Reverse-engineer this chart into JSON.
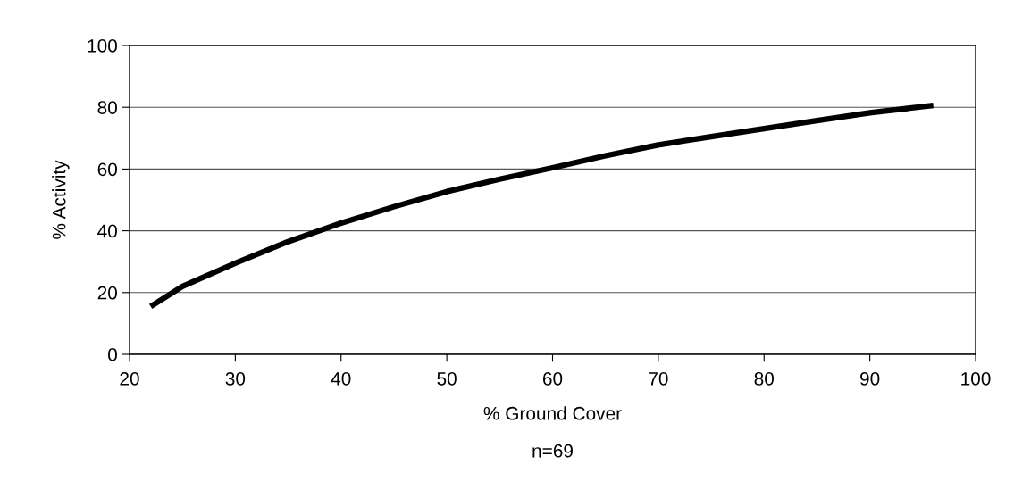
{
  "chart_data": {
    "type": "line",
    "xlabel": "% Ground Cover",
    "ylabel": "% Activity",
    "annotations": [
      "n=69"
    ],
    "x": [
      22,
      25,
      30,
      35,
      40,
      45,
      50,
      55,
      60,
      65,
      70,
      75,
      80,
      85,
      90,
      96
    ],
    "series": [
      {
        "color": "#000000",
        "values": [
          15.5,
          22,
          29.5,
          36.5,
          42.5,
          47.8,
          52.7,
          56.7,
          60.4,
          64.3,
          67.8,
          70.5,
          73.1,
          75.7,
          78.2,
          80.6
        ]
      }
    ],
    "xlim": [
      20,
      100
    ],
    "ylim": [
      0,
      100
    ],
    "xticks": [
      20,
      30,
      40,
      50,
      60,
      70,
      80,
      90,
      100
    ],
    "yticks": [
      0,
      20,
      40,
      60,
      80,
      100
    ],
    "grid": "y",
    "marker": "none",
    "line_style": "solid"
  }
}
